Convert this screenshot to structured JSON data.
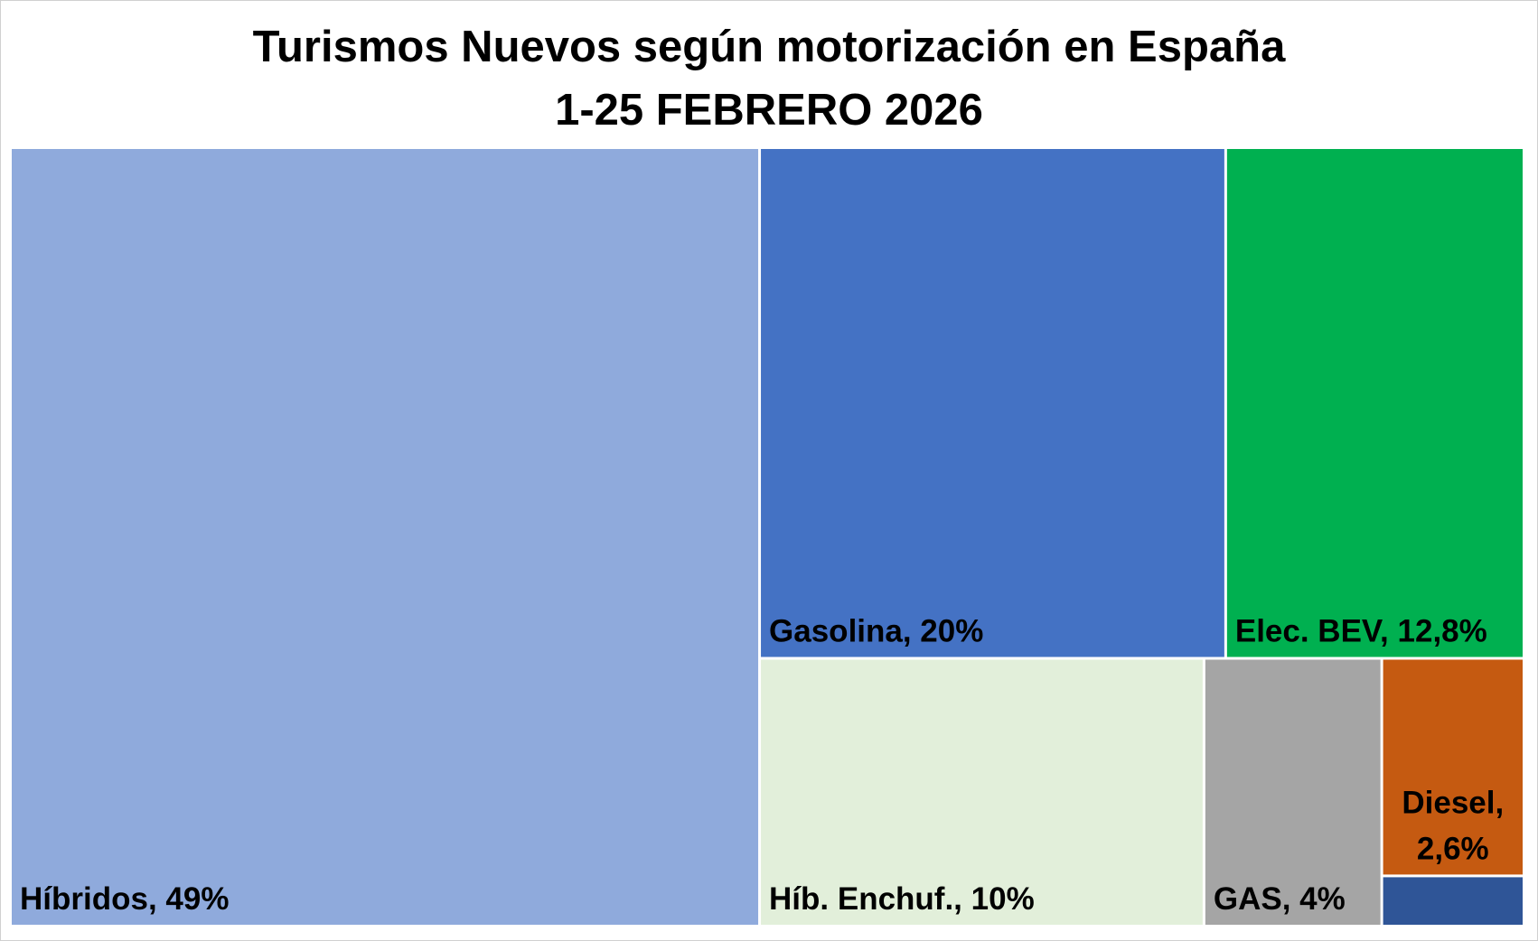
{
  "chart_data": {
    "type": "treemap",
    "title": "Turismos Nuevos según motorización en España",
    "subtitle": "1-25 FEBRERO 2026",
    "items": [
      {
        "name": "Híbridos",
        "value": 49,
        "label": "Híbridos, 49%",
        "color": "#8FAADC",
        "label_color": "#000000"
      },
      {
        "name": "Gasolina",
        "value": 20,
        "label": "Gasolina, 20%",
        "color": "#4472C4",
        "label_color": "#000000"
      },
      {
        "name": "Elec. BEV",
        "value": 12.8,
        "label": "Elec. BEV, 12,8%",
        "color": "#00B050",
        "label_color": "#000000"
      },
      {
        "name": "Híb. Enchuf.",
        "value": 10,
        "label": "Híb. Enchuf., 10%",
        "color": "#E2EFDA",
        "label_color": "#000000"
      },
      {
        "name": "GAS",
        "value": 4,
        "label": "GAS, 4%",
        "color": "#A5A5A5",
        "label_color": "#000000"
      },
      {
        "name": "Diesel",
        "value": 2.6,
        "label_lines": [
          "Diesel,",
          "2,6%"
        ],
        "color": "#C55A11",
        "label_color": "#000000"
      },
      {
        "name": "",
        "value": 0.6,
        "label": "",
        "color": "#2F5597",
        "label_color": "#000000"
      }
    ]
  }
}
